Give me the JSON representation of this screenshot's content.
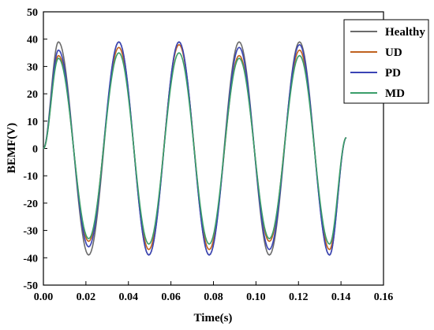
{
  "chart_data": {
    "type": "line",
    "title": "",
    "xlabel": "Time(s)",
    "ylabel": "BEMF(V)",
    "xlim": [
      0,
      0.16
    ],
    "ylim": [
      -50,
      50
    ],
    "xticks": [
      0,
      0.02,
      0.04,
      0.06,
      0.08,
      0.1,
      0.12,
      0.14,
      0.16
    ],
    "xtick_labels": [
      "0.00",
      "0.02",
      "0.04",
      "0.06",
      "0.08",
      "0.10",
      "0.12",
      "0.14",
      "0.16"
    ],
    "yticks": [
      -50,
      -40,
      -30,
      -20,
      -10,
      0,
      10,
      20,
      30,
      40,
      50
    ],
    "ytick_labels": [
      "-50",
      "-40",
      "-30",
      "-20",
      "-10",
      "0",
      "10",
      "20",
      "30",
      "40",
      "50"
    ],
    "grid": false,
    "legend_position": "top-right",
    "x_end": 0.1425,
    "series": [
      {
        "name": "Healthy",
        "color": "#6b6b6b",
        "points": [
          [
            0,
            0
          ],
          [
            0.0071,
            39
          ],
          [
            0.0213,
            -39
          ],
          [
            0.0355,
            39
          ],
          [
            0.0496,
            -39
          ],
          [
            0.0638,
            39
          ],
          [
            0.078,
            -39
          ],
          [
            0.0921,
            39
          ],
          [
            0.1063,
            -39
          ],
          [
            0.1205,
            39
          ],
          [
            0.1346,
            -39
          ],
          [
            0.1425,
            4
          ]
        ]
      },
      {
        "name": "UD",
        "color": "#c0621f",
        "points": [
          [
            0,
            0
          ],
          [
            0.0071,
            34
          ],
          [
            0.0213,
            -34
          ],
          [
            0.0355,
            37
          ],
          [
            0.0496,
            -37
          ],
          [
            0.0638,
            38
          ],
          [
            0.078,
            -37
          ],
          [
            0.0921,
            34
          ],
          [
            0.1063,
            -34
          ],
          [
            0.1205,
            36
          ],
          [
            0.1346,
            -37
          ],
          [
            0.1425,
            4
          ]
        ]
      },
      {
        "name": "PD",
        "color": "#3b44b5",
        "points": [
          [
            0,
            0
          ],
          [
            0.0071,
            36
          ],
          [
            0.0213,
            -36
          ],
          [
            0.0355,
            39
          ],
          [
            0.0496,
            -39
          ],
          [
            0.0638,
            39
          ],
          [
            0.078,
            -39
          ],
          [
            0.0921,
            37
          ],
          [
            0.1063,
            -37
          ],
          [
            0.1205,
            38
          ],
          [
            0.1346,
            -39
          ],
          [
            0.1425,
            4
          ]
        ]
      },
      {
        "name": "MD",
        "color": "#3a9e6a",
        "points": [
          [
            0,
            0
          ],
          [
            0.0071,
            33
          ],
          [
            0.0213,
            -33
          ],
          [
            0.0355,
            35
          ],
          [
            0.0496,
            -35
          ],
          [
            0.0638,
            35
          ],
          [
            0.078,
            -35
          ],
          [
            0.0921,
            33
          ],
          [
            0.1063,
            -33
          ],
          [
            0.1205,
            34
          ],
          [
            0.1346,
            -35
          ],
          [
            0.1425,
            4
          ]
        ]
      }
    ]
  }
}
